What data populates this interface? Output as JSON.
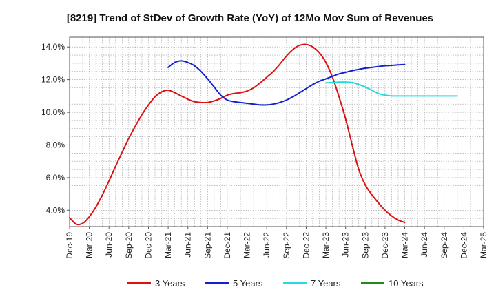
{
  "chart_data": {
    "type": "line",
    "title": "[8219]  Trend of StDev of Growth Rate (YoY) of 12Mo Mov Sum of Revenues",
    "xlabel": "",
    "ylabel": "",
    "ylim": [
      3.0,
      14.6
    ],
    "y_ticks": [
      4.0,
      6.0,
      8.0,
      10.0,
      12.0,
      14.0
    ],
    "y_tick_labels": [
      "4.0%",
      "6.0%",
      "8.0%",
      "10.0%",
      "12.0%",
      "14.0%"
    ],
    "x_tick_labels": [
      "Dec-19",
      "Mar-20",
      "Jun-20",
      "Sep-20",
      "Dec-20",
      "Mar-21",
      "Jun-21",
      "Sep-21",
      "Dec-21",
      "Mar-22",
      "Jun-22",
      "Sep-22",
      "Dec-22",
      "Mar-23",
      "Jun-23",
      "Sep-23",
      "Dec-23",
      "Mar-24",
      "Jun-24",
      "Sep-24",
      "Dec-24",
      "Mar-25"
    ],
    "grid": true,
    "legend_position": "bottom",
    "series": [
      {
        "name": "3 Years",
        "color": "#dd1111",
        "start_index": 0,
        "values": [
          3.55,
          3.15,
          3.2,
          3.6,
          4.2,
          4.95,
          5.8,
          6.7,
          7.55,
          8.4,
          9.15,
          9.85,
          10.45,
          10.95,
          11.25,
          11.35,
          11.2,
          11.0,
          10.8,
          10.65,
          10.6,
          10.6,
          10.7,
          10.85,
          11.05,
          11.15,
          11.2,
          11.3,
          11.5,
          11.8,
          12.15,
          12.5,
          12.95,
          13.45,
          13.85,
          14.1,
          14.15,
          14.0,
          13.65,
          13.05,
          12.15,
          10.95,
          9.6,
          8.0,
          6.5,
          5.55,
          4.95,
          4.45,
          4.0,
          3.65,
          3.4,
          3.25
        ]
      },
      {
        "name": "5 Years",
        "color": "#1122cc",
        "start_index": 15,
        "values": [
          12.75,
          13.05,
          13.15,
          13.05,
          12.85,
          12.5,
          12.05,
          11.55,
          11.05,
          10.75,
          10.65,
          10.6,
          10.55,
          10.5,
          10.45,
          10.45,
          10.5,
          10.6,
          10.75,
          10.95,
          11.2,
          11.45,
          11.7,
          11.9,
          12.05,
          12.2,
          12.35,
          12.45,
          12.55,
          12.63,
          12.7,
          12.75,
          12.8,
          12.85,
          12.87,
          12.9,
          12.92
        ]
      },
      {
        "name": "7 Years",
        "color": "#22dddd",
        "start_index": 39,
        "values": [
          11.8,
          11.82,
          11.85,
          11.85,
          11.82,
          11.7,
          11.55,
          11.35,
          11.15,
          11.05,
          11.0,
          11.0,
          11.0,
          11.0,
          11.0,
          11.0,
          11.0,
          11.0,
          11.0,
          11.0,
          11.0
        ]
      },
      {
        "name": "10 Years",
        "color": "#228822",
        "start_index": 0,
        "values": []
      }
    ]
  }
}
